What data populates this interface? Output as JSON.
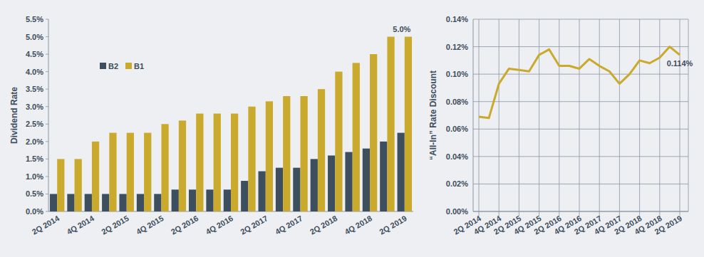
{
  "chart_data": [
    {
      "type": "bar",
      "y_label": "Dividend Rate",
      "categories": [
        "2Q 2014",
        null,
        "4Q 2014",
        null,
        "2Q 2015",
        null,
        "4Q 2015",
        null,
        "2Q 2016",
        null,
        "4Q 2016",
        null,
        "2Q 2017",
        null,
        "4Q 2017",
        null,
        "2Q 2018",
        null,
        "4Q 2018",
        null,
        "2Q 2019"
      ],
      "series": [
        {
          "name": "B2",
          "color": "#3d4e5e",
          "values": [
            0.5,
            0.5,
            0.5,
            0.5,
            0.5,
            0.5,
            0.5,
            0.625,
            0.625,
            0.625,
            0.625,
            0.875,
            1.15,
            1.25,
            1.25,
            1.5,
            1.6,
            1.7,
            1.8,
            2.0,
            2.25
          ]
        },
        {
          "name": "B1",
          "color": "#c9aa2c",
          "values": [
            1.5,
            1.5,
            2.0,
            2.25,
            2.25,
            2.25,
            2.5,
            2.6,
            2.8,
            2.8,
            2.8,
            3.0,
            3.15,
            3.3,
            3.3,
            3.5,
            4.0,
            4.25,
            4.5,
            5.0,
            5.0
          ]
        }
      ],
      "ylim": [
        0,
        5.5
      ],
      "yticks": [
        {
          "value": 0,
          "label": "0.0%"
        },
        {
          "value": 0.5,
          "label": "0.5%"
        },
        {
          "value": 1,
          "label": "1.0%"
        },
        {
          "value": 1.5,
          "label": "1.5%"
        },
        {
          "value": 2,
          "label": "2.0%"
        },
        {
          "value": 2.5,
          "label": "2.5%"
        },
        {
          "value": 3,
          "label": "3.0%"
        },
        {
          "value": 3.5,
          "label": "3.5%"
        },
        {
          "value": 4,
          "label": "4.0%"
        },
        {
          "value": 4.5,
          "label": "4.5%"
        },
        {
          "value": 5,
          "label": "5.0%"
        },
        {
          "value": 5.5,
          "label": "5.5%"
        }
      ],
      "grid": false,
      "legend": "upper left",
      "annotations": [
        {
          "text": "5.0%",
          "x": "2Q 2019",
          "y": 5.0
        }
      ]
    },
    {
      "type": "line",
      "y_label": "“All-In” Rate Discount",
      "categories": [
        "2Q 2014",
        null,
        "4Q 2014",
        null,
        "2Q 2015",
        null,
        "4Q 2015",
        null,
        "2Q 2016",
        null,
        "4Q 2016",
        null,
        "2Q 2017",
        null,
        "4Q 2017",
        null,
        "2Q 2018",
        null,
        "4Q 2018",
        null,
        "2Q 2019"
      ],
      "values": [
        0.069,
        0.068,
        0.093,
        0.104,
        0.103,
        0.102,
        0.114,
        0.118,
        0.106,
        0.106,
        0.104,
        0.111,
        0.106,
        0.102,
        0.093,
        0.1,
        0.11,
        0.108,
        0.112,
        0.12,
        0.114
      ],
      "color": "#c9aa2c",
      "ylim": [
        0,
        0.14
      ],
      "yticks": [
        {
          "value": 0,
          "label": "0.00%"
        },
        {
          "value": 0.02,
          "label": "0.02%"
        },
        {
          "value": 0.04,
          "label": "0.04%"
        },
        {
          "value": 0.06,
          "label": "0.06%"
        },
        {
          "value": 0.08,
          "label": "0.08%"
        },
        {
          "value": 0.1,
          "label": "0.10%"
        },
        {
          "value": 0.12,
          "label": "0.12%"
        },
        {
          "value": 0.14,
          "label": "0.14%"
        }
      ],
      "grid": true,
      "annotations": [
        {
          "text": "0.114%",
          "x": "2Q 2019",
          "y": 0.114
        }
      ]
    }
  ]
}
